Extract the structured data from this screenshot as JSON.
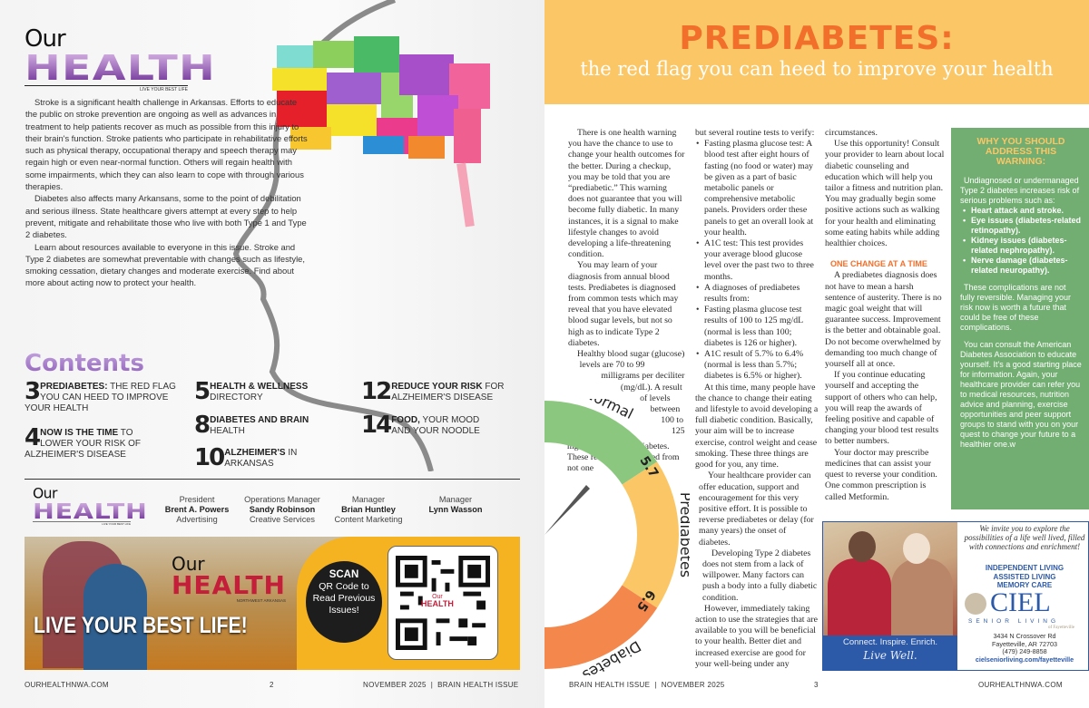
{
  "logo": {
    "our": "Our",
    "health": "HEALTH",
    "tagline": "LIVE YOUR BEST LIFE"
  },
  "intro": [
    "Stroke is a significant health challenge in Arkansas. Efforts to educate the public on stroke prevention are ongoing as well as advances in treatment to help patients recover as much as possible from this injury to their brain's function. Stroke patients who participate in rehabilitative efforts such as physical therapy, occupational therapy and speech therapy may regain high or even near-normal function. Others will regain health with some impairments, which they can also learn to cope with through various therapies.",
    "Diabetes also affects many Arkansans, some to the point of debilitation and serious illness. State healthcare givers attempt at every step to help prevent, mitigate and rehabilitate those who live with both Type 1 and Type 2 diabetes.",
    "Learn about resources available to everyone in this issue. Stroke and Type 2 diabetes are somewhat preventable with changes such as lifestyle, smoking cessation, dietary changes and moderate exercise. Find about more about acting now to protect your health."
  ],
  "contents": {
    "title": "Contents",
    "items": [
      {
        "num": "3",
        "bold": "PREDIABETES:",
        "rest": " THE RED FLAG YOU CAN HEED TO IMPROVE YOUR HEALTH"
      },
      {
        "num": "4",
        "bold": "NOW IS THE TIME",
        "rest": " TO LOWER YOUR RISK OF ALZHEIMER'S DISEASE"
      },
      {
        "num": "5",
        "bold": "HEALTH & WELLNESS",
        "rest": " DIRECTORY"
      },
      {
        "num": "8",
        "bold": "DIABETES AND BRAIN",
        "rest": " HEALTH"
      },
      {
        "num": "10",
        "bold": "ALZHEIMER'S",
        "rest": " IN ARKANSAS"
      },
      {
        "num": "12",
        "bold": "REDUCE YOUR RISK",
        "rest": " FOR ALZHEIMER'S DISEASE"
      },
      {
        "num": "14",
        "bold": "FOOD,",
        "rest": " YOUR MOOD AND YOUR NOODLE"
      }
    ]
  },
  "staff": [
    {
      "title": "President",
      "name": "Brent A. Powers",
      "role": "Advertising"
    },
    {
      "title": "Operations Manager",
      "name": "Sandy Robinson",
      "role": "Creative Services"
    },
    {
      "title": "Manager",
      "name": "Brian Huntley",
      "role": "Content Marketing"
    },
    {
      "title": "Manager",
      "name": "Lynn Wasson",
      "role": ""
    }
  ],
  "banner": {
    "logo_our": "Our",
    "logo_health": "HEALTH",
    "logo_region": "NORTHWEST ARKANSAS",
    "headline": "LIVE YOUR BEST LIFE!",
    "scan": "SCAN",
    "scan_text": "QR Code to Read Previous Issues!",
    "qr_logo_our": "Our",
    "qr_logo_health": "HEALTH"
  },
  "footer": {
    "left_site": "OURHEALTHNWA.COM",
    "left_page": "2",
    "left_issue": "NOVEMBER 2025  |  BRAIN HEALTH ISSUE",
    "right_issue": "BRAIN HEALTH ISSUE  |  NOVEMBER 2025",
    "right_page": "3",
    "right_site": "OURHEALTHNWA.COM"
  },
  "article": {
    "title": "PREDIABETES:",
    "subtitle": "the red flag you can heed to improve your health",
    "col1": [
      "There is one health warning you have the chance to use to change your health outcomes for the better. During a checkup, you may be told that you are “prediabetic.” This warning does not guarantee that you will become fully diabetic. In many instances, it is a signal to make lifestyle changes to avoid developing a life-threatening condition.",
      "You may learn of your diagnosis from annual blood tests. Prediabetes is diagnosed from common tests which may reveal that you have elevated blood sugar levels, but not so high as to indicate Type 2 diabetes.",
      "Healthy blood sugar (glucose) levels are 70 to 99 milligrams per deciliter (mg/dL). A result of levels between 100 to 125 mg/dL indicates prediabetes. These results are obtained from not one"
    ],
    "col2_lead": "but several routine tests to verify:",
    "col2_bullets": [
      "Fasting plasma glucose test: A blood test after eight hours of fasting (no food or water) may be given as a part of basic metabolic panels or comprehensive metabolic panels. Providers order these panels to get an overall look at your health.",
      "A1C test: This test provides your average blood glucose level over the past two to three months.",
      "A diagnoses of prediabetes results from:",
      "Fasting plasma glucose test results of 100 to 125 mg/dL (normal is less than 100; diabetes is 126 or higher).",
      "A1C result of 5.7% to 6.4% (normal is less than 5.7%; diabetes is 6.5% or higher)."
    ],
    "col2": [
      "At this time, many people have the chance to change their eating and lifestyle to avoid developing a full diabetic condition. Basically, your aim will be to increase exercise, control weight and cease smoking. These three things are good for you, any time.",
      "Your healthcare provider can offer education, support and encouragement for this very positive effort. It is possible to reverse prediabetes or delay (for many years) the onset of diabetes.",
      "Developing Type 2 diabetes does not stem from a lack of willpower. Many factors can push a body into a fully diabetic condition.",
      "However, immediately taking action to use the strategies that are available to you will be beneficial to your health. Better diet and increased exercise are good for your well-being under any"
    ],
    "col3a": [
      "circumstances.",
      "Use this opportunity! Consult your provider to learn about local diabetic counseling and education which will help you tailor a fitness and nutrition plan. You may gradually begin some positive actions such as walking for your health and eliminating some eating habits while adding healthier choices."
    ],
    "col3_heading": "ONE CHANGE AT A TIME",
    "col3b": [
      "A prediabetes diagnosis does not have to mean a harsh sentence of austerity. There is no magic goal weight that will guarantee success. Improvement is the better and obtainable goal. Do not become overwhelmed by demanding too much change of yourself all at once.",
      "If you continue educating yourself and accepting the support of others who can help, you will reap the awards of feeling positive and capable of changing your blood test results to better numbers.",
      "Your doctor may prescribe medicines that can assist your quest to reverse your condition. One common prescription is called Metformin."
    ]
  },
  "gauge": {
    "labels": [
      "Normal",
      "Prediabetes",
      "Diabetes"
    ],
    "thresholds": [
      "5.7",
      "6.5"
    ],
    "colors": [
      "#8cc77f",
      "#fbc766",
      "#f4874b"
    ]
  },
  "sidebar": {
    "title": "WHY YOU SHOULD ADDRESS THIS WARNING:",
    "intro": "Undiagnosed or undermanaged Type 2 diabetes increases risk of serious problems such as:",
    "bullets": [
      "Heart attack and stroke.",
      "Eye issues (diabetes-related retinopathy).",
      "Kidney issues (diabetes-related nephropathy).",
      "Nerve damage (diabetes-related neuropathy)."
    ],
    "p2": "These complications are not fully reversible. Managing your risk now is worth a future that could be free of these complications.",
    "p3": "You can consult the American Diabetes Association to educate yourself. It's a good starting place for information. Again, your healthcare provider can refer you to medical resources, nutrition advice and planning, exercise opportunities and peer support groups to stand with you on your quest to change your future to a healthier one.w"
  },
  "ad": {
    "invite": "We invite you to explore the possibilities of a life well lived, filled with connections and enrichment!",
    "services": [
      "INDEPENDENT LIVING",
      "ASSISTED LIVING",
      "MEMORY CARE"
    ],
    "brand": "CIEL",
    "brand_sub": "SENIOR LIVING",
    "brand_loc": "of Fayetteville",
    "address1": "3434 N Crossover Rd",
    "address2": "Fayetteville, AR 72703",
    "phone": "(479) 249-8858",
    "url": "cielseniorliving.com/fayetteville",
    "slogan": "Connect. Inspire. Enrich.",
    "script": "Live Well."
  }
}
